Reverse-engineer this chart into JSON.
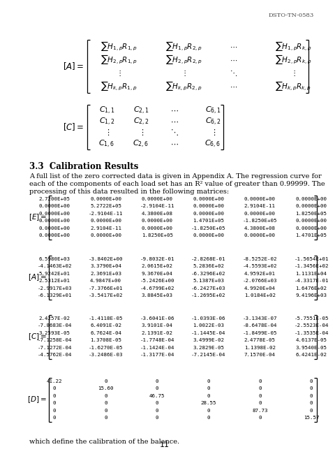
{
  "header": "DSTO-TN-0583",
  "page_num": "11",
  "section_title": "3.3  Calibration Results",
  "body_text1": "A full list of the zero corrected data is given in Appendix A. The regression curve for",
  "body_text2": "each of the components of each load set has an R² value of greater than 0.99999. The",
  "body_text3": "processing of this data resulted in the following matrices:",
  "E_matrix": [
    [
      "2.7200E+05",
      "0.0000E+00",
      "0.0000E+00",
      "0.0000E+00",
      "0.0000E+00",
      "0.0000E+00"
    ],
    [
      "0.0000E+00",
      "5.2722E+05",
      "-2.9104E-11",
      "0.0000E+00",
      "2.9104E-11",
      "0.0000E+00"
    ],
    [
      "0.0000E+00",
      "-2.9104E-11",
      "4.3800E+08",
      "0.0000E+00",
      "0.0000E+00",
      "1.8250E+05"
    ],
    [
      "0.0000E+00",
      "0.0000E+00",
      "0.0000E+00",
      "1.4701E+05",
      "-1.8250E+05",
      "0.0000E+00"
    ],
    [
      "0.0000E+00",
      "2.9104E-11",
      "0.0000E+00",
      "-1.8250E+05",
      "4.3800E+08",
      "0.0000E+00"
    ],
    [
      "0.0000E+00",
      "0.0000E+00",
      "1.8250E+05",
      "0.0000E+00",
      "0.0000E+00",
      "1.4701E+05"
    ]
  ],
  "A_matrix": [
    [
      "6.5980E+03",
      "-3.8402E+00",
      "-9.8032E-01",
      "-2.8268E-01",
      "-8.5252E-02",
      "-1.5654E+01"
    ],
    [
      "-4.1463E+02",
      "3.3790E+04",
      "2.0615E+02",
      "5.2836E+02",
      "-4.5593E+02",
      "-1.3456E+02"
    ],
    [
      "5.9242E+01",
      "2.3691E+03",
      "9.3670E+04",
      "-6.3296E+02",
      "4.9592E+01",
      "1.1131E+04"
    ],
    [
      "2.5312E+01",
      "4.9847E+00",
      "-5.2426E+00",
      "5.1387E+03",
      "-2.0766E+03",
      "-4.3317E-01"
    ],
    [
      "-2.9917E+03",
      "-7.3766E+01",
      "-4.6799E+02",
      "-6.2427E+03",
      "4.9920E+04",
      "1.6476E+02"
    ],
    [
      "-6.1329E+01",
      "-3.5417E+02",
      "3.8845E+03",
      "-1.2695E+02",
      "1.0184E+02",
      "9.4196E+03"
    ]
  ],
  "C_matrix": [
    [
      "2.4257E-02",
      "-1.4118E-05",
      "-3.6041E-06",
      "-1.0393E-06",
      "-3.1343E-07",
      "-5.7551E-05"
    ],
    [
      "-7.8683E-04",
      "6.4091E-02",
      "3.9101E-04",
      "1.0022E-03",
      "-8.6478E-04",
      "-2.5523E-04"
    ],
    [
      "3.2593E-05",
      "6.7624E-04",
      "2.1391E-02",
      "-1.1445E-04",
      "-1.8499E-05",
      "-1.3535E-04"
    ],
    [
      "-7.1258E-04",
      "1.3708E-05",
      "-1.7748E-04",
      "3.4999E-02",
      "2.4778E-05",
      "4.6137E-05"
    ],
    [
      "-7.1272E-04",
      "-1.6270E-05",
      "-1.1424E-04",
      "3.2829E-05",
      "1.1398E-02",
      "3.9540E-05"
    ],
    [
      "-4.5762E-04",
      "-3.2486E-03",
      "-1.3177E-04",
      "-7.2145E-04",
      "7.1570E-04",
      "6.4241E-02"
    ]
  ],
  "D_matrix": [
    [
      "41.22",
      "0",
      "0",
      "0",
      "0",
      "0"
    ],
    [
      "0",
      "15.60",
      "0",
      "0",
      "0",
      "0"
    ],
    [
      "0",
      "0",
      "46.75",
      "0",
      "0",
      "0"
    ],
    [
      "0",
      "0",
      "0",
      "28.55",
      "0",
      "0"
    ],
    [
      "0",
      "0",
      "0",
      "0",
      "87.73",
      "0"
    ],
    [
      "0",
      "0",
      "0",
      "0",
      "0",
      "15.57"
    ]
  ],
  "footer_text": "which define the calibration of the balance.",
  "bg_color": "#ffffff",
  "text_color": "#000000"
}
